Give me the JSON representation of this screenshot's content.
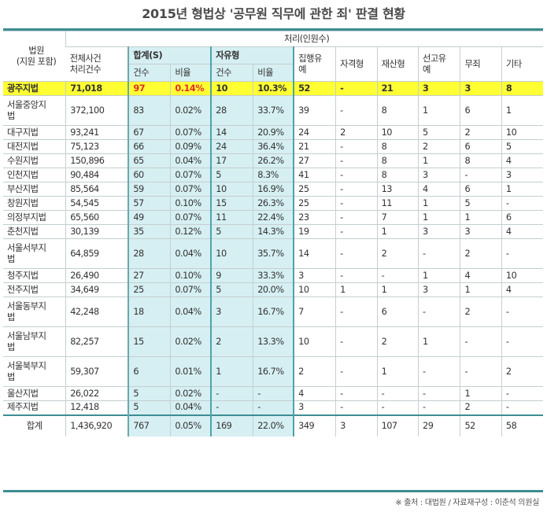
{
  "title": "2015년 형법상 '공무원 직무에 관한 죄' 판결 현황",
  "header": {
    "court": "법원\n(지원 포함)",
    "processing": "처리(인원수)",
    "total_cases": "전체사건\n처리건수",
    "sum": "합계(S)",
    "sum_count": "건수",
    "sum_ratio": "비율",
    "prison": "자유형",
    "prison_count": "건수",
    "prison_ratio": "비율",
    "suspended": "집행유\n예",
    "disqualify": "자격형",
    "property": "재산형",
    "postponed": "선고유\n예",
    "acquittal": "무죄",
    "other": "기타"
  },
  "rows": [
    {
      "court": "광주지법",
      "total": "71,018",
      "s_count": "97",
      "s_ratio": "0.14%",
      "p_count": "10",
      "p_ratio": "10.3%",
      "suspended": "52",
      "disqualify": "-",
      "property": "21",
      "postponed": "3",
      "acquittal": "3",
      "other": "8",
      "highlight": true
    },
    {
      "court": "서울중앙지\n법",
      "total": "372,100",
      "s_count": "83",
      "s_ratio": "0.02%",
      "p_count": "28",
      "p_ratio": "33.7%",
      "suspended": "39",
      "disqualify": "-",
      "property": "8",
      "postponed": "1",
      "acquittal": "6",
      "other": "1"
    },
    {
      "court": "대구지법",
      "total": "93,241",
      "s_count": "67",
      "s_ratio": "0.07%",
      "p_count": "14",
      "p_ratio": "20.9%",
      "suspended": "24",
      "disqualify": "2",
      "property": "10",
      "postponed": "5",
      "acquittal": "2",
      "other": "10"
    },
    {
      "court": "대전지법",
      "total": "75,123",
      "s_count": "66",
      "s_ratio": "0.09%",
      "p_count": "24",
      "p_ratio": "36.4%",
      "suspended": "21",
      "disqualify": "-",
      "property": "8",
      "postponed": "2",
      "acquittal": "6",
      "other": "5"
    },
    {
      "court": "수원지법",
      "total": "150,896",
      "s_count": "65",
      "s_ratio": "0.04%",
      "p_count": "17",
      "p_ratio": "26.2%",
      "suspended": "27",
      "disqualify": "-",
      "property": "8",
      "postponed": "1",
      "acquittal": "8",
      "other": "4"
    },
    {
      "court": "인천지법",
      "total": "90,484",
      "s_count": "60",
      "s_ratio": "0.07%",
      "p_count": "5",
      "p_ratio": "8.3%",
      "suspended": "41",
      "disqualify": "-",
      "property": "8",
      "postponed": "3",
      "acquittal": "-",
      "other": "3"
    },
    {
      "court": "부산지법",
      "total": "85,564",
      "s_count": "59",
      "s_ratio": "0.07%",
      "p_count": "10",
      "p_ratio": "16.9%",
      "suspended": "25",
      "disqualify": "-",
      "property": "13",
      "postponed": "4",
      "acquittal": "6",
      "other": "1"
    },
    {
      "court": "창원지법",
      "total": "54,545",
      "s_count": "57",
      "s_ratio": "0.10%",
      "p_count": "15",
      "p_ratio": "26.3%",
      "suspended": "25",
      "disqualify": "-",
      "property": "11",
      "postponed": "1",
      "acquittal": "5",
      "other": "-"
    },
    {
      "court": "의정부지법",
      "total": "65,560",
      "s_count": "49",
      "s_ratio": "0.07%",
      "p_count": "11",
      "p_ratio": "22.4%",
      "suspended": "23",
      "disqualify": "-",
      "property": "7",
      "postponed": "1",
      "acquittal": "1",
      "other": "6"
    },
    {
      "court": "춘천지법",
      "total": "30,139",
      "s_count": "35",
      "s_ratio": "0.12%",
      "p_count": "5",
      "p_ratio": "14.3%",
      "suspended": "19",
      "disqualify": "-",
      "property": "1",
      "postponed": "3",
      "acquittal": "3",
      "other": "4"
    },
    {
      "court": "서울서부지\n법",
      "total": "64,859",
      "s_count": "28",
      "s_ratio": "0.04%",
      "p_count": "10",
      "p_ratio": "35.7%",
      "suspended": "14",
      "disqualify": "-",
      "property": "2",
      "postponed": "-",
      "acquittal": "2",
      "other": "-"
    },
    {
      "court": "청주지법",
      "total": "26,490",
      "s_count": "27",
      "s_ratio": "0.10%",
      "p_count": "9",
      "p_ratio": "33.3%",
      "suspended": "3",
      "disqualify": "-",
      "property": "-",
      "postponed": "1",
      "acquittal": "4",
      "other": "10"
    },
    {
      "court": "전주지법",
      "total": "34,649",
      "s_count": "25",
      "s_ratio": "0.07%",
      "p_count": "5",
      "p_ratio": "20.0%",
      "suspended": "10",
      "disqualify": "1",
      "property": "1",
      "postponed": "3",
      "acquittal": "1",
      "other": "4"
    },
    {
      "court": "서울동부지\n법",
      "total": "42,248",
      "s_count": "18",
      "s_ratio": "0.04%",
      "p_count": "3",
      "p_ratio": "16.7%",
      "suspended": "7",
      "disqualify": "-",
      "property": "6",
      "postponed": "-",
      "acquittal": "2",
      "other": "-"
    },
    {
      "court": "서울남부지\n법",
      "total": "82,257",
      "s_count": "15",
      "s_ratio": "0.02%",
      "p_count": "2",
      "p_ratio": "13.3%",
      "suspended": "10",
      "disqualify": "-",
      "property": "2",
      "postponed": "1",
      "acquittal": "-",
      "other": "-"
    },
    {
      "court": "서울북부지\n법",
      "total": "59,307",
      "s_count": "6",
      "s_ratio": "0.01%",
      "p_count": "1",
      "p_ratio": "16.7%",
      "suspended": "2",
      "disqualify": "-",
      "property": "1",
      "postponed": "-",
      "acquittal": "-",
      "other": "2"
    },
    {
      "court": "울산지법",
      "total": "26,022",
      "s_count": "5",
      "s_ratio": "0.02%",
      "p_count": "-",
      "p_ratio": "-",
      "suspended": "4",
      "disqualify": "-",
      "property": "-",
      "postponed": "-",
      "acquittal": "1",
      "other": "-"
    },
    {
      "court": "제주지법",
      "total": "12,418",
      "s_count": "5",
      "s_ratio": "0.04%",
      "p_count": "-",
      "p_ratio": "-",
      "suspended": "3",
      "disqualify": "-",
      "property": "-",
      "postponed": "-",
      "acquittal": "2",
      "other": "-"
    }
  ],
  "total_row": {
    "court": "합계",
    "total": "1,436,920",
    "s_count": "767",
    "s_ratio": "0.05%",
    "p_count": "169",
    "p_ratio": "22.0%",
    "suspended": "349",
    "disqualify": "3",
    "property": "107",
    "postponed": "29",
    "acquittal": "52",
    "other": "58"
  },
  "source": "※ 출처 : 대법원 / 자료재구성 : 이춘석 의원실",
  "colors": {
    "accent": "#3d8d92",
    "teal_fill": "#d6eff2",
    "highlight": "#ffff33",
    "highlight_text": "#e0302a"
  }
}
